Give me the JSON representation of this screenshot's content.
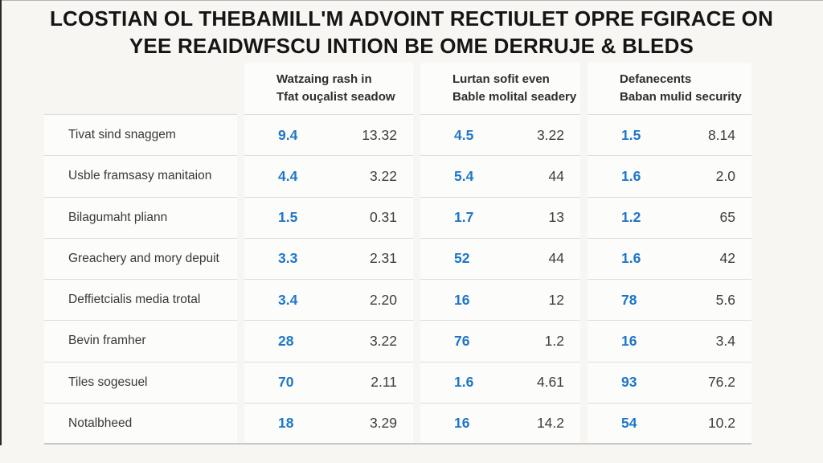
{
  "title": {
    "line1": "LCOSTIAN OL THEBAMILL'M ADVOINT RECTIULET OPRE FGIRACE ON",
    "line2": "YEE REAIDWFSCU INTION BE OME DERRUJE & BLEDS"
  },
  "chart_data": {
    "type": "table",
    "title": "LCOSTIAN OL THEBAMILL'M ADVOINT RECTIULET OPRE FGIRACE ON YEE REAIDWFSCU INTION BE OME DERRUJE & BLEDS",
    "headers": [
      {
        "line1": "Watzaing rash in",
        "line2": "Tfat ouçalist seadow"
      },
      {
        "line1": "Lurtan sofit even",
        "line2": "Bable molital seadery"
      },
      {
        "line1": "Defanecents",
        "line2": "Baban mulid security"
      }
    ],
    "rows": [
      {
        "label": "Tivat sind snaggem",
        "values": [
          "9.4",
          "13.32",
          "4.5",
          "3.22",
          "1.5",
          "8.14"
        ]
      },
      {
        "label": "Usble framsasy manitaion",
        "values": [
          "4.4",
          "3.22",
          "5.4",
          "44",
          "1.6",
          "2.0"
        ]
      },
      {
        "label": "Bilagumaht pliann",
        "values": [
          "1.5",
          "0.31",
          "1.7",
          "13",
          "1.2",
          "65"
        ]
      },
      {
        "label": "Greachery and mory depuit",
        "values": [
          "3.3",
          "2.31",
          "52",
          "44",
          "1.6",
          "42"
        ]
      },
      {
        "label": "Deffietcialis media trotal",
        "values": [
          "3.4",
          "2.20",
          "16",
          "12",
          "78",
          "5.6"
        ]
      },
      {
        "label": "Bevin framher",
        "values": [
          "28",
          "3.22",
          "76",
          "1.2",
          "16",
          "3.4"
        ]
      },
      {
        "label": "Tiles sogesuel",
        "values": [
          "70",
          "2.11",
          "1.6",
          "4.61",
          "93",
          "76.2"
        ]
      },
      {
        "label": "Notalbheed",
        "values": [
          "18",
          "3.29",
          "16",
          "14.2",
          "54",
          "10.2"
        ]
      }
    ]
  },
  "colors": {
    "accent_blue": "#1d76c8",
    "page_bg": "#f7f6f3",
    "card_bg": "#fcfcfa",
    "divider": "#dfddd9"
  }
}
